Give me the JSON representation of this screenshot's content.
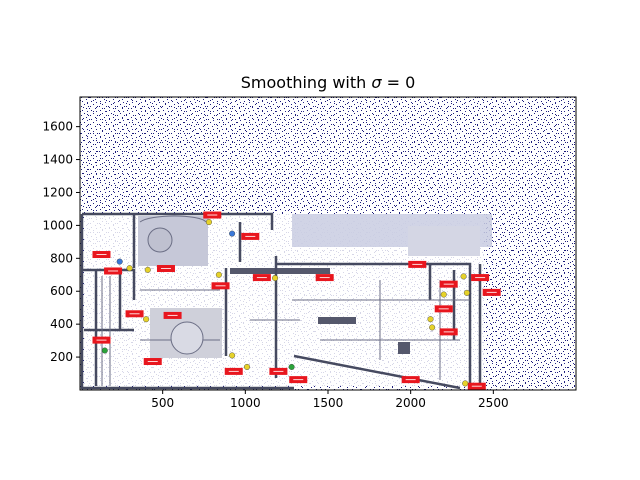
{
  "figure": {
    "title_prefix": "Smoothing with ",
    "title_symbol": "σ",
    "title_suffix": " = 0"
  },
  "chart_data": {
    "type": "scatter",
    "title": "Smoothing with  σ = 0",
    "xlabel": "",
    "ylabel": "",
    "xlim": [
      0,
      3000
    ],
    "ylim": [
      0,
      1780
    ],
    "grid": false,
    "legend": "none",
    "xticks": [
      500,
      1000,
      1500,
      2000,
      2500
    ],
    "yticks": [
      200,
      400,
      600,
      800,
      1000,
      1200,
      1400,
      1600
    ],
    "series": [
      {
        "kind": "map-markers",
        "color": "#e8161e",
        "points": [
          {
            "x": 130,
            "y": 820
          },
          {
            "x": 800,
            "y": 1060
          },
          {
            "x": 1030,
            "y": 930
          },
          {
            "x": 200,
            "y": 720
          },
          {
            "x": 520,
            "y": 735
          },
          {
            "x": 2040,
            "y": 760
          },
          {
            "x": 1100,
            "y": 680
          },
          {
            "x": 1480,
            "y": 680
          },
          {
            "x": 2420,
            "y": 680
          },
          {
            "x": 850,
            "y": 630
          },
          {
            "x": 2230,
            "y": 640
          },
          {
            "x": 2490,
            "y": 590
          },
          {
            "x": 330,
            "y": 460
          },
          {
            "x": 560,
            "y": 450
          },
          {
            "x": 2200,
            "y": 490
          },
          {
            "x": 2230,
            "y": 350
          },
          {
            "x": 130,
            "y": 300
          },
          {
            "x": 440,
            "y": 170
          },
          {
            "x": 930,
            "y": 110
          },
          {
            "x": 1200,
            "y": 110
          },
          {
            "x": 1320,
            "y": 60
          },
          {
            "x": 2000,
            "y": 60
          },
          {
            "x": 2400,
            "y": 20
          }
        ]
      },
      {
        "kind": "map-markers",
        "color": "#e6d22a",
        "points": [
          {
            "x": 780,
            "y": 1020
          },
          {
            "x": 300,
            "y": 740
          },
          {
            "x": 410,
            "y": 730
          },
          {
            "x": 840,
            "y": 700
          },
          {
            "x": 1180,
            "y": 680
          },
          {
            "x": 2320,
            "y": 690
          },
          {
            "x": 2200,
            "y": 580
          },
          {
            "x": 2340,
            "y": 590
          },
          {
            "x": 2120,
            "y": 430
          },
          {
            "x": 2130,
            "y": 380
          },
          {
            "x": 400,
            "y": 430
          },
          {
            "x": 920,
            "y": 210
          },
          {
            "x": 1010,
            "y": 140
          },
          {
            "x": 2330,
            "y": 40
          }
        ]
      },
      {
        "kind": "map-markers",
        "color": "#2aa33a",
        "points": [
          {
            "x": 150,
            "y": 240
          },
          {
            "x": 1280,
            "y": 140
          }
        ]
      },
      {
        "kind": "map-markers",
        "color": "#3a78d8",
        "points": [
          {
            "x": 240,
            "y": 780
          },
          {
            "x": 920,
            "y": 950
          }
        ]
      }
    ],
    "background": "dense navy point cloud over a floor-plan raster"
  }
}
